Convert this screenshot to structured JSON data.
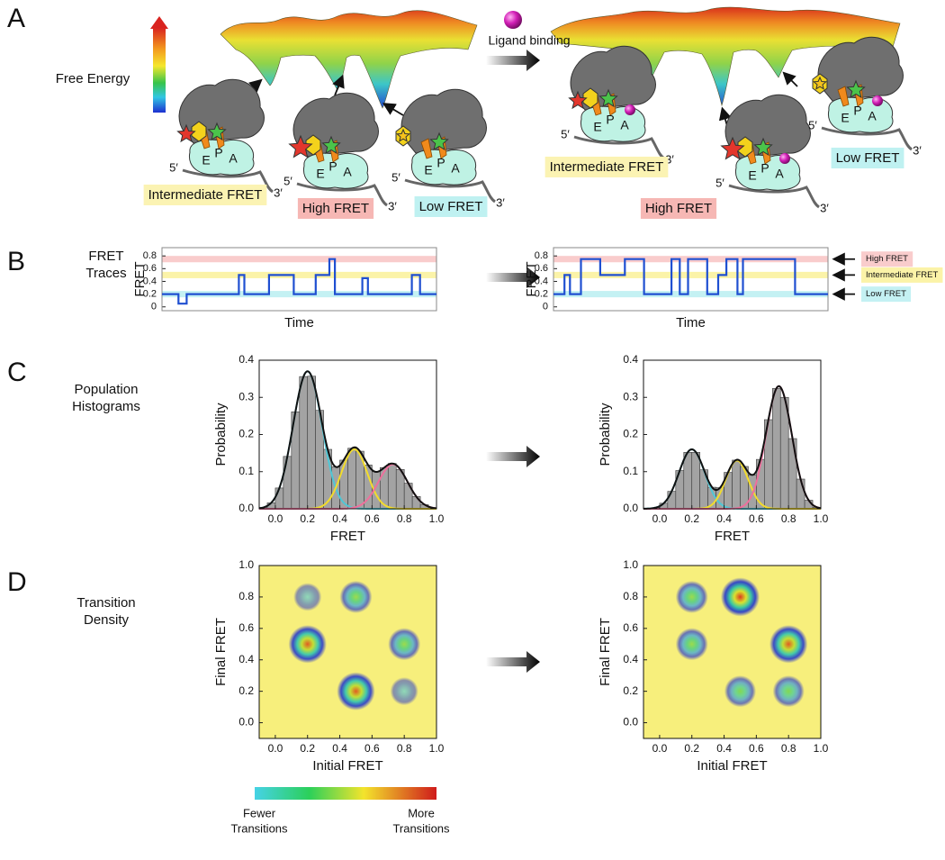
{
  "panel_labels": [
    "A",
    "B",
    "C",
    "D"
  ],
  "free_energy": "Free Energy",
  "ligand_label": "Ligand binding",
  "row_b": [
    "FRET",
    "Traces"
  ],
  "row_c": [
    "Population",
    "Histograms"
  ],
  "row_d": [
    "Transition",
    "Density"
  ],
  "sites": [
    "E",
    "P",
    "A"
  ],
  "five_prime": "5′",
  "three_prime": "3′",
  "left_states": [
    {
      "label": "Intermediate FRET",
      "color": "#fbf3b3"
    },
    {
      "label": "High FRET",
      "color": "#f6b7b4"
    },
    {
      "label": "Low FRET",
      "color": "#bff1f1"
    }
  ],
  "right_states": [
    {
      "label": "Intermediate FRET",
      "color": "#fbf3b3"
    },
    {
      "label": "High FRET",
      "color": "#f6b7b4"
    },
    {
      "label": "Low FRET",
      "color": "#bff1f1"
    }
  ],
  "colorbar": {
    "low": [
      "Fewer",
      "Transitions"
    ],
    "high": [
      "More",
      "Transitions"
    ]
  },
  "chart_data": [
    {
      "type": "line",
      "xlabel": "Time",
      "ylabel": "FRET",
      "color": "#1f4fd1",
      "xlim": [
        0,
        100
      ],
      "ylim": [
        -0.06,
        0.93
      ],
      "yticks": [
        0,
        0.2,
        0.4,
        0.6,
        0.8
      ],
      "bands": [
        {
          "value": 0.75,
          "color": "#f9cccc"
        },
        {
          "value": 0.5,
          "color": "#fbf3a8"
        },
        {
          "value": 0.2,
          "color": "#c4f1f3"
        }
      ],
      "x": [
        0,
        6,
        6,
        9,
        9,
        28,
        28,
        30,
        30,
        39,
        39,
        48,
        48,
        56,
        56,
        61,
        61,
        63,
        63,
        73,
        73,
        75,
        75,
        91,
        91,
        94,
        94,
        100
      ],
      "values": [
        0.2,
        0.2,
        0.05,
        0.05,
        0.2,
        0.2,
        0.5,
        0.5,
        0.2,
        0.2,
        0.5,
        0.5,
        0.2,
        0.2,
        0.5,
        0.5,
        0.75,
        0.75,
        0.2,
        0.2,
        0.45,
        0.45,
        0.2,
        0.2,
        0.5,
        0.5,
        0.2,
        0.2
      ]
    },
    {
      "type": "line",
      "xlabel": "Time",
      "ylabel": "FRET",
      "color": "#1f4fd1",
      "xlim": [
        0,
        100
      ],
      "ylim": [
        -0.06,
        0.93
      ],
      "yticks": [
        0,
        0.2,
        0.4,
        0.6,
        0.8
      ],
      "bands": [
        {
          "value": 0.75,
          "color": "#f9cccc",
          "name": "High FRET"
        },
        {
          "value": 0.5,
          "color": "#fbf3a8",
          "name": "Intermediate FRET"
        },
        {
          "value": 0.2,
          "color": "#c4f1f3",
          "name": "Low FRET"
        }
      ],
      "x": [
        0,
        4,
        4,
        6,
        6,
        10,
        10,
        17,
        17,
        26,
        26,
        33,
        33,
        43,
        43,
        46,
        46,
        49,
        49,
        56,
        56,
        60,
        60,
        63,
        63,
        67,
        67,
        69,
        69,
        88,
        88,
        100
      ],
      "values": [
        0.2,
        0.2,
        0.5,
        0.5,
        0.2,
        0.2,
        0.75,
        0.75,
        0.5,
        0.5,
        0.75,
        0.75,
        0.2,
        0.2,
        0.75,
        0.75,
        0.2,
        0.2,
        0.75,
        0.75,
        0.2,
        0.2,
        0.5,
        0.5,
        0.75,
        0.75,
        0.2,
        0.2,
        0.75,
        0.75,
        0.2,
        0.2
      ]
    },
    {
      "type": "histogram",
      "xlabel": "FRET",
      "ylabel": "Probability",
      "bar_color": "#a3a3a3",
      "fit_color": "#111111",
      "xlim": [
        -0.1,
        1.0
      ],
      "ylim": [
        0,
        0.4
      ],
      "xticks": [
        {
          "value": 0,
          "label": "0.0"
        },
        0.2,
        0.4,
        0.6,
        0.8,
        {
          "value": 1,
          "label": "1.0"
        }
      ],
      "yticks": [
        {
          "value": 0,
          "label": "0.0"
        },
        0.1,
        0.2,
        0.3,
        0.4
      ],
      "bins": [
        -0.1,
        -0.05,
        0,
        0.05,
        0.1,
        0.15,
        0.2,
        0.25,
        0.3,
        0.35,
        0.4,
        0.45,
        0.5,
        0.55,
        0.6,
        0.65,
        0.7,
        0.75,
        0.8,
        0.85,
        0.9,
        0.95,
        1.0
      ],
      "values": [
        0.004,
        0.016,
        0.056,
        0.141,
        0.261,
        0.356,
        0.357,
        0.265,
        0.16,
        0.113,
        0.131,
        0.163,
        0.155,
        0.118,
        0.1,
        0.111,
        0.122,
        0.106,
        0.069,
        0.033,
        0.011,
        0.003
      ],
      "components": [
        {
          "mean": 0.2,
          "sd": 0.09,
          "height": 0.37,
          "color": "#4fc7d6"
        },
        {
          "mean": 0.49,
          "sd": 0.08,
          "height": 0.16,
          "color": "#f2dc2c"
        },
        {
          "mean": 0.73,
          "sd": 0.09,
          "height": 0.12,
          "color": "#ef6f9c"
        }
      ]
    },
    {
      "type": "histogram",
      "xlabel": "FRET",
      "ylabel": "Probability",
      "bar_color": "#a3a3a3",
      "fit_color": "#111111",
      "xlim": [
        -0.1,
        1.0
      ],
      "ylim": [
        0,
        0.4
      ],
      "xticks": [
        {
          "value": 0,
          "label": "0.0"
        },
        0.2,
        0.4,
        0.6,
        0.8,
        {
          "value": 1,
          "label": "1.0"
        }
      ],
      "yticks": [
        {
          "value": 0,
          "label": "0.0"
        },
        0.1,
        0.2,
        0.3,
        0.4
      ],
      "bins": [
        -0.1,
        -0.05,
        0,
        0.05,
        0.1,
        0.15,
        0.2,
        0.25,
        0.3,
        0.35,
        0.4,
        0.45,
        0.5,
        0.55,
        0.6,
        0.65,
        0.7,
        0.75,
        0.8,
        0.85,
        0.9,
        0.95,
        1.0
      ],
      "values": [
        0.0,
        0.003,
        0.015,
        0.047,
        0.103,
        0.152,
        0.152,
        0.105,
        0.058,
        0.057,
        0.098,
        0.131,
        0.114,
        0.091,
        0.133,
        0.24,
        0.324,
        0.3,
        0.189,
        0.08,
        0.023,
        0.004
      ],
      "components": [
        {
          "mean": 0.2,
          "sd": 0.08,
          "height": 0.16,
          "color": "#4fc7d6"
        },
        {
          "mean": 0.48,
          "sd": 0.07,
          "height": 0.13,
          "color": "#f2dc2c"
        },
        {
          "mean": 0.74,
          "sd": 0.08,
          "height": 0.33,
          "color": "#ef6f9c"
        }
      ]
    },
    {
      "type": "density",
      "xlabel": "Initial FRET",
      "ylabel": "Final FRET",
      "background": "#f7ef7c",
      "xlim": [
        -0.1,
        1.0
      ],
      "ylim": [
        -0.1,
        1.0
      ],
      "xticks": [
        {
          "value": 0,
          "label": "0.0"
        },
        0.2,
        0.4,
        0.6,
        0.8,
        {
          "value": 1,
          "label": "1.0"
        }
      ],
      "yticks": [
        {
          "value": 0,
          "label": "0.0"
        },
        0.2,
        0.4,
        0.6,
        0.8,
        {
          "value": 1,
          "label": "1.0"
        }
      ],
      "x": [
        0.2,
        0.5,
        0.2,
        0.8,
        0.5,
        0.8
      ],
      "y": [
        0.8,
        0.8,
        0.5,
        0.5,
        0.2,
        0.2
      ],
      "values": [
        0.2,
        0.5,
        0.9,
        0.5,
        0.9,
        0.2
      ]
    },
    {
      "type": "density",
      "xlabel": "Initial FRET",
      "ylabel": "Final FRET",
      "background": "#f7ef7c",
      "xlim": [
        -0.1,
        1.0
      ],
      "ylim": [
        -0.1,
        1.0
      ],
      "xticks": [
        {
          "value": 0,
          "label": "0.0"
        },
        0.2,
        0.4,
        0.6,
        0.8,
        {
          "value": 1,
          "label": "1.0"
        }
      ],
      "yticks": [
        {
          "value": 0,
          "label": "0.0"
        },
        0.2,
        0.4,
        0.6,
        0.8,
        {
          "value": 1,
          "label": "1.0"
        }
      ],
      "x": [
        0.2,
        0.5,
        0.2,
        0.8,
        0.5,
        0.8
      ],
      "y": [
        0.8,
        0.8,
        0.5,
        0.5,
        0.2,
        0.2
      ],
      "values": [
        0.5,
        0.95,
        0.5,
        0.9,
        0.45,
        0.45
      ]
    }
  ]
}
